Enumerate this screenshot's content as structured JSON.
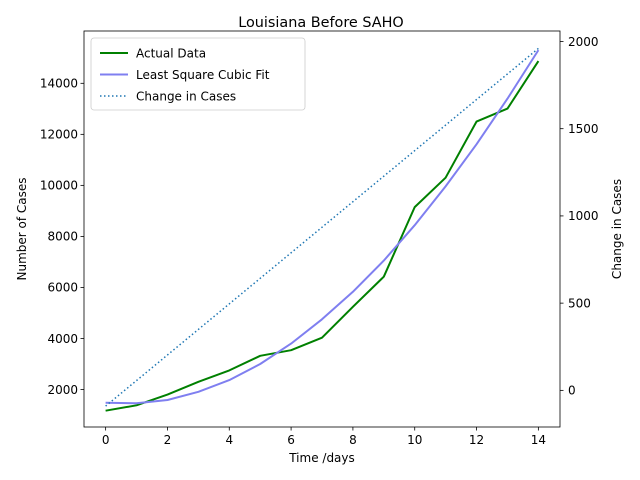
{
  "chart_data": {
    "type": "line",
    "title": "Louisiana Before SAHO",
    "xlabel": "Time /days",
    "ylabel": "Number of Cases",
    "y2label": "Change in Cases",
    "xlim": [
      -0.7,
      14.7
    ],
    "ylim": [
      530,
      16050
    ],
    "y2lim": [
      -210,
      2060
    ],
    "xticks": [
      0,
      2,
      4,
      6,
      8,
      10,
      12,
      14
    ],
    "yticks": [
      2000,
      4000,
      6000,
      8000,
      10000,
      12000,
      14000
    ],
    "y2ticks": [
      0,
      500,
      1000,
      1500,
      2000
    ],
    "legend": {
      "position": "top-left",
      "entries": [
        "Actual Data",
        "Least Square Cubic Fit",
        "Change in Cases"
      ]
    },
    "series": [
      {
        "name": "Actual Data",
        "axis": "left",
        "color": "#008000",
        "style": "solid",
        "x": [
          0,
          1,
          2,
          3,
          4,
          5,
          6,
          7,
          8,
          9,
          10,
          11,
          12,
          13,
          14
        ],
        "values": [
          1170,
          1380,
          1800,
          2300,
          2750,
          3320,
          3540,
          4030,
          5240,
          6420,
          9150,
          10300,
          12500,
          13010,
          14870
        ]
      },
      {
        "name": "Least Square Cubic Fit",
        "axis": "left",
        "color": "#7f7ff0",
        "style": "solid",
        "x": [
          0,
          1,
          2,
          3,
          4,
          5,
          6,
          7,
          8,
          9,
          10,
          11,
          12,
          13,
          14
        ],
        "values": [
          1480,
          1460,
          1590,
          1910,
          2370,
          3000,
          3800,
          4750,
          5830,
          7050,
          8440,
          9960,
          11610,
          13400,
          15300
        ]
      },
      {
        "name": "Change in Cases",
        "axis": "right",
        "color": "#1f77b4",
        "style": "dotted",
        "x": [
          0,
          14
        ],
        "values": [
          -90,
          1960
        ]
      }
    ]
  }
}
